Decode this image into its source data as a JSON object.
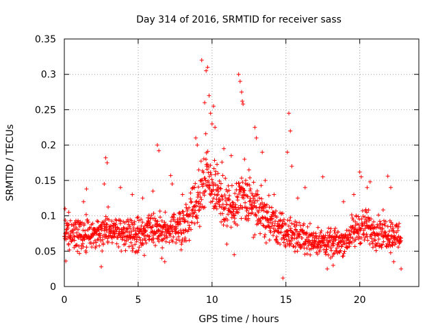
{
  "chart_data": {
    "type": "scatter",
    "title": "Day 314 of 2016, SRMTID for receiver sass",
    "xlabel": "GPS time / hours",
    "ylabel": "SRMTID / TECUs",
    "xlim": [
      0,
      24
    ],
    "ylim": [
      0,
      0.35
    ],
    "xticks": [
      0,
      5,
      10,
      15,
      20
    ],
    "xtick_labels": [
      "0",
      "5",
      "10",
      "15",
      "20"
    ],
    "yticks": [
      0,
      0.05,
      0.1,
      0.15,
      0.2,
      0.25,
      0.3,
      0.35
    ],
    "ytick_labels": [
      "0",
      "0.05",
      "0.1",
      "0.15",
      "0.2",
      "0.25",
      "0.3",
      "0.35"
    ],
    "grid": true,
    "marker": "plus",
    "color": "#ff0000",
    "series": [
      {
        "name": "SRMTID",
        "profile": {
          "x": [
            0,
            1,
            2,
            3,
            4,
            5,
            6,
            7,
            8,
            9,
            9.5,
            10,
            10.5,
            11,
            11.5,
            12,
            12.5,
            13,
            14,
            15,
            16,
            17,
            18,
            19,
            19.5,
            20,
            21,
            22,
            22.8
          ],
          "median": [
            0.075,
            0.072,
            0.074,
            0.085,
            0.075,
            0.072,
            0.078,
            0.08,
            0.088,
            0.12,
            0.16,
            0.15,
            0.13,
            0.115,
            0.105,
            0.125,
            0.12,
            0.11,
            0.09,
            0.075,
            0.07,
            0.065,
            0.06,
            0.065,
            0.075,
            0.085,
            0.08,
            0.075,
            0.07
          ]
        },
        "sample_points": [
          [
            0.05,
            0.11
          ],
          [
            0.1,
            0.036
          ],
          [
            0.3,
            0.105
          ],
          [
            1.3,
            0.12
          ],
          [
            1.5,
            0.138
          ],
          [
            2.5,
            0.028
          ],
          [
            2.7,
            0.145
          ],
          [
            2.8,
            0.182
          ],
          [
            2.9,
            0.175
          ],
          [
            3.8,
            0.14
          ],
          [
            4.6,
            0.13
          ],
          [
            5.3,
            0.125
          ],
          [
            6.0,
            0.135
          ],
          [
            6.3,
            0.2
          ],
          [
            6.4,
            0.192
          ],
          [
            6.6,
            0.04
          ],
          [
            6.8,
            0.035
          ],
          [
            7.2,
            0.157
          ],
          [
            7.3,
            0.145
          ],
          [
            8.0,
            0.13
          ],
          [
            8.8,
            0.14
          ],
          [
            8.9,
            0.21
          ],
          [
            9.0,
            0.2
          ],
          [
            9.1,
            0.165
          ],
          [
            9.3,
            0.32
          ],
          [
            9.5,
            0.26
          ],
          [
            9.6,
            0.305
          ],
          [
            9.7,
            0.31
          ],
          [
            9.8,
            0.27
          ],
          [
            9.9,
            0.245
          ],
          [
            10.0,
            0.23
          ],
          [
            10.1,
            0.255
          ],
          [
            10.2,
            0.225
          ],
          [
            10.4,
            0.16
          ],
          [
            10.8,
            0.195
          ],
          [
            11.0,
            0.06
          ],
          [
            11.3,
            0.185
          ],
          [
            11.5,
            0.045
          ],
          [
            11.8,
            0.3
          ],
          [
            11.9,
            0.29
          ],
          [
            12.0,
            0.275
          ],
          [
            12.05,
            0.262
          ],
          [
            12.1,
            0.258
          ],
          [
            12.2,
            0.18
          ],
          [
            12.5,
            0.165
          ],
          [
            12.9,
            0.225
          ],
          [
            13.0,
            0.21
          ],
          [
            13.4,
            0.19
          ],
          [
            13.6,
            0.15
          ],
          [
            14.2,
            0.13
          ],
          [
            14.6,
            0.06
          ],
          [
            14.8,
            0.012
          ],
          [
            15.1,
            0.19
          ],
          [
            15.2,
            0.245
          ],
          [
            15.3,
            0.22
          ],
          [
            15.4,
            0.17
          ],
          [
            15.8,
            0.125
          ],
          [
            16.3,
            0.14
          ],
          [
            17.5,
            0.155
          ],
          [
            17.8,
            0.025
          ],
          [
            18.2,
            0.03
          ],
          [
            18.9,
            0.12
          ],
          [
            19.6,
            0.13
          ],
          [
            20.0,
            0.162
          ],
          [
            20.1,
            0.155
          ],
          [
            20.5,
            0.14
          ],
          [
            20.7,
            0.148
          ],
          [
            21.9,
            0.156
          ],
          [
            22.1,
            0.14
          ],
          [
            22.3,
            0.035
          ],
          [
            22.8,
            0.025
          ]
        ]
      }
    ]
  }
}
